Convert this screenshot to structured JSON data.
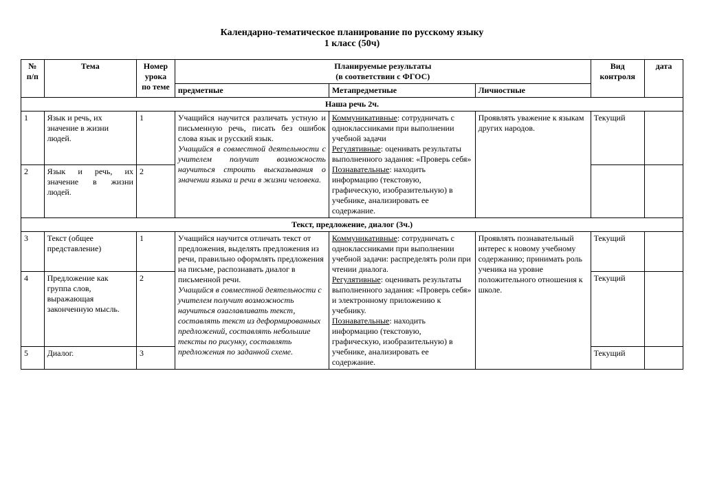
{
  "title_line1": "Календарно-тематическое планирование по русскому языку",
  "title_line2": "1 класс (50ч)",
  "headers": {
    "num": "№ п/п",
    "topic": "Тема",
    "lesson": "Номер урока по теме",
    "results": "Планируемые результаты",
    "results_sub": "(в соответствии с ФГОС)",
    "subject": "предметные",
    "meta": "Метапредметные",
    "personal": "Личностные",
    "control": "Вид контроля",
    "date": "дата"
  },
  "section1": {
    "title": "Наша речь 2ч.",
    "row1_num": "1",
    "row1_topic": "Язык и речь, их значение в жизни людей.",
    "row1_lesson": "1",
    "row2_num": "2",
    "row2_topic": "Язык и речь, их значение в жизни людей.",
    "row2_lesson": "2",
    "subj_plain": "Учащийся научится различать устную и письменную речь, писать без ошибок слова язык и русский язык.",
    "subj_italic": "Учащийся в совместной деятельности с учителем получит возможность научиться строить высказывания о значении языка и речи в жизни человека.",
    "meta_h1": "Коммуникативные",
    "meta_t1": ": сотрудничать с одноклассниками при выполнении учебной задачи",
    "meta_h2": "Регулятивные",
    "meta_t2": ": оценивать результаты выполненного задания: «Проверь себя»",
    "meta_h3": "Познавательные",
    "meta_t3": ": находить информацию (текстовую, графическую, изобразительную) в учебнике, анализировать ее содержание.",
    "personal": "Проявлять уважение к языкам других народов.",
    "ctrl1": "Текущий"
  },
  "section2": {
    "title": "Текст, предложение, диалог (3ч.)",
    "row3_num": "3",
    "row3_topic": "Текст (общее представление)",
    "row3_lesson": "1",
    "row4_num": "4",
    "row4_topic": "Предложение как группа слов, выражающая законченную мысль.",
    "row4_lesson": "2",
    "row5_num": "5",
    "row5_topic": "Диалог.",
    "row5_lesson": "3",
    "subj_plain": "Учащийся научится отличать текст от предложения, выделять предложения из речи, правильно оформлять предложения на письме, распознавать диалог в письменной речи.",
    "subj_italic": "Учащийся в совместной деятельности с учителем получит возможность научиться озаглавливать текст, составлять текст из деформированных предложений, составлять небольшие тексты по рисунку, составлять предложения по заданной схеме.",
    "meta_h1": "Коммуникативные",
    "meta_t1": ": сотрудничать с одноклассниками при выполнении учебной задачи: распределять роли при чтении диалога.",
    "meta_h2": "Регулятивные",
    "meta_t2": ": оценивать результаты выполненного задания: «Проверь себя» и электронному приложению к учебнику.",
    "meta_h3": "Познавательные",
    "meta_t3": ": находить информацию (текстовую, графическую, изобразительную) в учебнике, анализировать ее содержание.",
    "personal": "Проявлять познавательный интерес к новому учебному содержанию; принимать роль ученика на уровне положительного отношения к школе.",
    "ctrl": "Текущий"
  }
}
